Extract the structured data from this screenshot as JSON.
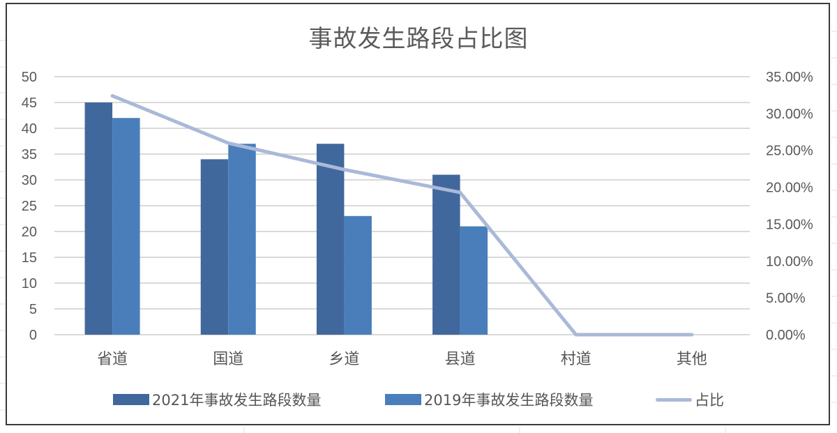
{
  "chart_data": {
    "type": "bar",
    "title": "事故发生路段占比图",
    "categories": [
      "省道",
      "国道",
      "乡道",
      "县道",
      "村道",
      "其他"
    ],
    "series": [
      {
        "name": "2021年事故发生路段数量",
        "type": "bar",
        "axis": "left",
        "color": "#41689c",
        "values": [
          45,
          34,
          37,
          31,
          0,
          0
        ]
      },
      {
        "name": "2019年事故发生路段数量",
        "type": "bar",
        "axis": "left",
        "color": "#4a7ebb",
        "values": [
          42,
          37,
          23,
          21,
          0,
          0
        ]
      },
      {
        "name": "占比",
        "type": "line",
        "axis": "right",
        "color": "#a9b9d8",
        "values": [
          0.324,
          0.26,
          0.224,
          0.193,
          0.0,
          0.0
        ]
      }
    ],
    "left_axis": {
      "min": 0,
      "max": 50,
      "step": 5,
      "ticks": [
        "0",
        "5",
        "10",
        "15",
        "20",
        "25",
        "30",
        "35",
        "40",
        "45",
        "50"
      ]
    },
    "right_axis": {
      "min": 0,
      "max": 0.35,
      "step": 0.05,
      "ticks": [
        "0.00%",
        "5.00%",
        "10.00%",
        "15.00%",
        "20.00%",
        "25.00%",
        "30.00%",
        "35.00%"
      ]
    },
    "xlabel": "",
    "ylabel": "",
    "grid": true,
    "legend_position": "bottom"
  },
  "title": "事故发生路段占比图",
  "legend": [
    {
      "label": "2021年事故发生路段数量",
      "kind": "bar",
      "color": "#41689c"
    },
    {
      "label": "2019年事故发生路段数量",
      "kind": "bar",
      "color": "#4a7ebb"
    },
    {
      "label": "占比",
      "kind": "line",
      "color": "#a9b9d8"
    }
  ]
}
